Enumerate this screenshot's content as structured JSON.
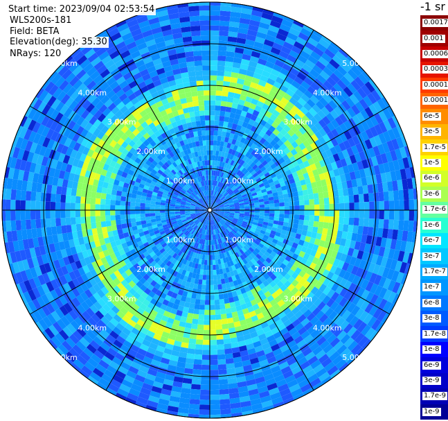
{
  "header": {
    "start_time": "Start time: 2023/09/04 02:53:54",
    "instrument": "WLS200s-181",
    "field": "Field: BETA",
    "elevation": "Elevation(deg): 35.30",
    "nrays": "NRays: 120"
  },
  "colorbar": {
    "title": "-1 sr",
    "ticks": [
      "0.0017",
      "0.001",
      "0.0006",
      "0.0003",
      "0.00017",
      "0.0001",
      "6e-5",
      "3e-5",
      "1.7e-5",
      "1e-5",
      "6e-6",
      "3e-6",
      "1.7e-6",
      "1e-6",
      "6e-7",
      "3e-7",
      "1.7e-7",
      "1e-7",
      "6e-8",
      "3e-8",
      "1.7e-8",
      "1e-8",
      "6e-9",
      "3e-9",
      "1.7e-9",
      "1e-9"
    ],
    "colors": [
      "#8b0000",
      "#a00000",
      "#c80000",
      "#e61400",
      "#ff3c00",
      "#ff6400",
      "#ff8c00",
      "#ffb400",
      "#ffd200",
      "#ffff00",
      "#d2ff28",
      "#aaff50",
      "#64ffa0",
      "#28ffd2",
      "#00e6ff",
      "#00c8ff",
      "#00aaff",
      "#0096ff",
      "#0078ff",
      "#005aff",
      "#003cff",
      "#0000ff",
      "#0000dc",
      "#0000c8",
      "#0000b4",
      "#000096"
    ]
  },
  "chart_data": {
    "type": "heatmap",
    "projection": "polar (PPI)",
    "field": "BETA",
    "n_rays": 120,
    "range_rings_km": [
      1,
      2,
      3,
      4,
      5
    ],
    "range_ring_labels": [
      "1.00km",
      "2.00km",
      "3.00km",
      "4.00km",
      "5.00km"
    ],
    "max_range_km": 5.0,
    "azimuth_spokes_deg": [
      0,
      30,
      60,
      90,
      120,
      150,
      180,
      210,
      240,
      270,
      300,
      330
    ],
    "features": {
      "aerosol_layer_ring_km": [
        2.6,
        3.1
      ],
      "aerosol_layer_value": "1e-5",
      "inner_region_value": "6e-7",
      "outer_region_value": "6e-8"
    },
    "colorscale": "log, 1e-9 to 0.0017 sr-1",
    "grid": true,
    "legend": "right"
  }
}
